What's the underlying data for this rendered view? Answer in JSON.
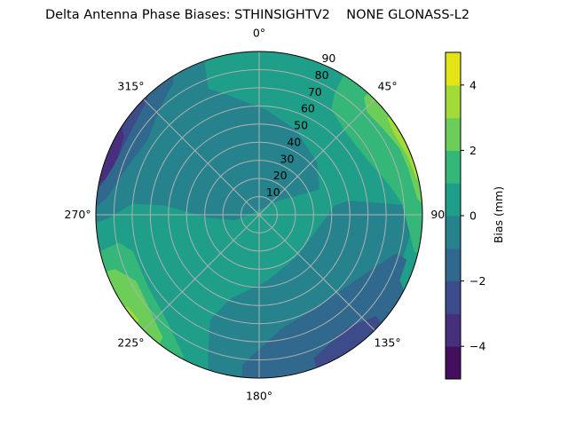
{
  "chart_data": {
    "type": "polar-contour",
    "title": "Delta Antenna Phase Biases: STHINSIGHTV2    NONE GLONASS-L2",
    "theta_direction": "clockwise",
    "theta_zero": "top",
    "theta_ticks": [
      "0°",
      "45°",
      "90°",
      "135°",
      "180°",
      "225°",
      "270°",
      "315°"
    ],
    "r_ticks": [
      "10",
      "20",
      "30",
      "40",
      "50",
      "60",
      "70",
      "80",
      "90"
    ],
    "r_max": 90,
    "grid": true,
    "colorbar": {
      "label": "Bias (mm)",
      "levels": [
        -5,
        -4,
        -3,
        -2,
        -1,
        0,
        1,
        2,
        3,
        4,
        5
      ],
      "colors": [
        "#440f5f",
        "#472f7d",
        "#3d4b8a",
        "#30688e",
        "#26838e",
        "#1f9e89",
        "#35b779",
        "#6cce59",
        "#a2db38",
        "#e2e418"
      ],
      "tick_values": [
        -4,
        -2,
        0,
        2,
        4
      ],
      "tick_labels": [
        "−4",
        "−2",
        "0",
        "2",
        "4"
      ],
      "placement": "right"
    },
    "background_band": [
      0,
      1
    ],
    "regions": [
      {
        "band": [
          -1,
          0
        ],
        "points": [
          [
            341,
            95
          ],
          [
            338,
            75
          ],
          [
            345,
            68.5
          ],
          [
            3.9,
            58
          ],
          [
            23.4,
            51
          ],
          [
            47.8,
            43
          ],
          [
            67.1,
            36
          ],
          [
            54,
            13
          ],
          [
            291,
            3
          ],
          [
            257.5,
            14
          ],
          [
            267,
            29
          ],
          [
            275.6,
            52
          ],
          [
            275,
            70
          ],
          [
            268.4,
            84
          ],
          [
            266.5,
            95
          ],
          [
            300,
            95
          ],
          [
            330,
            95
          ]
        ]
      },
      {
        "band": [
          -1,
          0
        ],
        "points": [
          [
            83,
            42
          ],
          [
            109,
            32
          ],
          [
            139,
            31
          ],
          [
            174,
            37
          ],
          [
            199,
            49
          ],
          [
            205,
            64
          ],
          [
            200,
            82.5
          ],
          [
            197,
            95
          ],
          [
            180,
            95
          ],
          [
            150,
            95
          ],
          [
            130,
            95
          ],
          [
            125.6,
            85
          ],
          [
            111,
            83
          ],
          [
            97,
            84
          ],
          [
            86,
            79
          ],
          [
            81,
            50
          ]
        ]
      },
      {
        "band": [
          -2,
          -1
        ],
        "points": [
          [
            105.5,
            78.5
          ],
          [
            124.7,
            64
          ],
          [
            146,
            60
          ],
          [
            169,
            64
          ],
          [
            186.3,
            83
          ],
          [
            186,
            95
          ],
          [
            170,
            95
          ],
          [
            140,
            95
          ],
          [
            120,
            95
          ],
          [
            115,
            85.5
          ],
          [
            107,
            85
          ]
        ]
      },
      {
        "band": [
          -3,
          -2
        ],
        "points": [
          [
            131,
            85
          ],
          [
            142.6,
            79
          ],
          [
            159,
            84.5
          ],
          [
            160,
            95
          ],
          [
            145,
            95
          ],
          [
            132,
            95
          ]
        ]
      },
      {
        "band": [
          -2,
          -1
        ],
        "points": [
          [
            329.5,
            95
          ],
          [
            327,
            86.8
          ],
          [
            316.7,
            80
          ],
          [
            304,
            74
          ],
          [
            288,
            78
          ],
          [
            276,
            84.7
          ],
          [
            270,
            95
          ],
          [
            300,
            95
          ]
        ]
      },
      {
        "band": [
          -3,
          -2
        ],
        "points": [
          [
            316,
            88.5
          ],
          [
            304.8,
            84.6
          ],
          [
            287.5,
            84.8
          ],
          [
            280,
            89
          ],
          [
            280,
            95
          ],
          [
            318,
            95
          ]
        ]
      },
      {
        "band": [
          -4,
          -3
        ],
        "points": [
          [
            306,
            95
          ],
          [
            300,
            86
          ],
          [
            292,
            84
          ],
          [
            283,
            87
          ],
          [
            278,
            95
          ]
        ]
      },
      {
        "band": [
          1,
          2
        ],
        "points": [
          [
            30.8,
            95
          ],
          [
            32,
            78
          ],
          [
            34.4,
            70.4
          ],
          [
            46.8,
            65.8
          ],
          [
            64.8,
            67.4
          ],
          [
            77.8,
            74
          ],
          [
            85.7,
            79
          ],
          [
            95,
            82.5
          ],
          [
            103.3,
            87.8
          ],
          [
            105,
            95
          ],
          [
            70,
            95
          ]
        ]
      },
      {
        "band": [
          2,
          3
        ],
        "points": [
          [
            41.8,
            95
          ],
          [
            41.8,
            86.6
          ],
          [
            46.5,
            82
          ],
          [
            54.4,
            83
          ],
          [
            64.5,
            85.7
          ],
          [
            72.8,
            86
          ],
          [
            84,
            87.5
          ],
          [
            90,
            95
          ],
          [
            60,
            95
          ]
        ]
      },
      {
        "band": [
          3,
          4
        ],
        "points": [
          [
            53,
            95
          ],
          [
            53,
            88.5
          ],
          [
            58.7,
            86.7
          ],
          [
            68.7,
            88
          ],
          [
            77,
            88.8
          ],
          [
            80,
            95
          ],
          [
            65,
            95
          ]
        ]
      },
      {
        "band": [
          4,
          5
        ],
        "points": [
          [
            70,
            95
          ],
          [
            72,
            89.5
          ],
          [
            76,
            89.5
          ],
          [
            79,
            95
          ]
        ]
      },
      {
        "band": [
          1,
          2
        ],
        "points": [
          [
            257,
            95
          ],
          [
            257,
            89.8
          ],
          [
            258.8,
            79
          ],
          [
            253.8,
            72.4
          ],
          [
            237,
            73
          ],
          [
            221.8,
            77
          ],
          [
            208.4,
            88
          ],
          [
            206,
            95
          ],
          [
            230,
            95
          ]
        ]
      },
      {
        "band": [
          2,
          3
        ],
        "points": [
          [
            250,
            95
          ],
          [
            249.3,
            84.8
          ],
          [
            241.7,
            77
          ],
          [
            228.5,
            80
          ],
          [
            218.2,
            86
          ],
          [
            217,
            95
          ],
          [
            235,
            95
          ]
        ]
      },
      {
        "band": [
          3,
          4
        ],
        "points": [
          [
            238,
            95
          ],
          [
            235,
            88.5
          ],
          [
            229,
            88
          ],
          [
            227,
            95
          ]
        ]
      }
    ]
  }
}
